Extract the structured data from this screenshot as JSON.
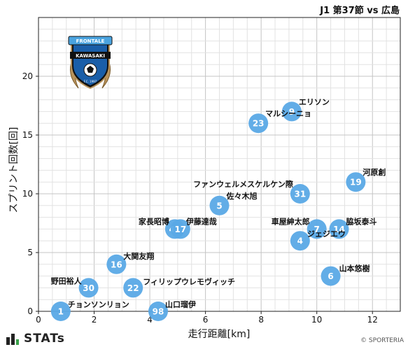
{
  "header": {
    "title": "J1 第37節 vs 広島"
  },
  "footer": {
    "brand": "STATs",
    "credit": "© SPORTERIA"
  },
  "emblem": {
    "line1": "FRONTALE",
    "line2": "KAWASAKI",
    "line3": "F.C. 1997",
    "colors": [
      "#1a5ea8",
      "#4aa3df",
      "#b8925a",
      "#111111"
    ]
  },
  "colors": {
    "marker": "#5aa9e6",
    "marker_text": "#ffffff",
    "grid_minor": "#e2e2e2",
    "grid_major": "#c4c4c4"
  },
  "chart_data": {
    "type": "scatter",
    "title": "J1 第37節 vs 広島",
    "xlabel": "走行距離[km]",
    "ylabel": "スプリント回数[回]",
    "xlim": [
      0,
      13
    ],
    "ylim": [
      0,
      25
    ],
    "xticks": [
      "0",
      "2",
      "4",
      "6",
      "8",
      "10",
      "12"
    ],
    "yticks": [
      "0",
      "5",
      "10",
      "15",
      "20"
    ],
    "grid": true,
    "points": [
      {
        "number": "9",
        "name": "エリソン",
        "x": 9.1,
        "y": 17
      },
      {
        "number": "23",
        "name": "マルシーニョ",
        "x": 7.9,
        "y": 16
      },
      {
        "number": "19",
        "name": "河原創",
        "x": 11.4,
        "y": 11
      },
      {
        "number": "31",
        "name": "ファンウェルメスケルケン際",
        "x": 9.4,
        "y": 10
      },
      {
        "number": "5",
        "name": "佐々木旭",
        "x": 6.5,
        "y": 9
      },
      {
        "number": "41",
        "name": "家長昭博",
        "x": 4.9,
        "y": 7
      },
      {
        "number": "17",
        "name": "伊藤達哉",
        "x": 5.1,
        "y": 7
      },
      {
        "number": "7",
        "name": "車屋紳太郎",
        "x": 10.0,
        "y": 7
      },
      {
        "number": "14",
        "name": "脇坂泰斗",
        "x": 10.8,
        "y": 7
      },
      {
        "number": "4",
        "name": "ジェジエウ",
        "x": 9.4,
        "y": 6
      },
      {
        "number": "16",
        "name": "大関友翔",
        "x": 2.8,
        "y": 4
      },
      {
        "number": "6",
        "name": "山本悠樹",
        "x": 10.5,
        "y": 3
      },
      {
        "number": "30",
        "name": "野田裕人",
        "x": 1.8,
        "y": 2
      },
      {
        "number": "22",
        "name": "フィリップウレモヴィッチ",
        "x": 3.4,
        "y": 2
      },
      {
        "number": "1",
        "name": "チョンソンリョン",
        "x": 0.8,
        "y": 0
      },
      {
        "number": "98",
        "name": "山口瑠伊",
        "x": 4.3,
        "y": 0
      }
    ]
  }
}
